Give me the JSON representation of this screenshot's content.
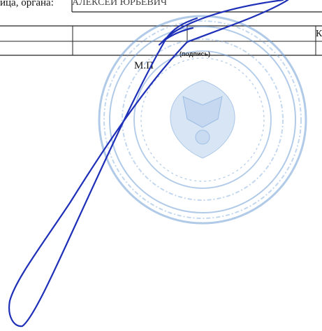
{
  "document": {
    "org_label": "ица, органа:",
    "field_value": "АЛЕКСЕЙ ЮРЬЕВИЧ",
    "signature_caption": "(подпись)",
    "mp_label": "М.П",
    "edge_cell_text": "К"
  },
  "colors": {
    "ink": "#1a1a1a",
    "signature_ink": "#1e2fb8",
    "stamp_ink": "#6f9fd6"
  }
}
